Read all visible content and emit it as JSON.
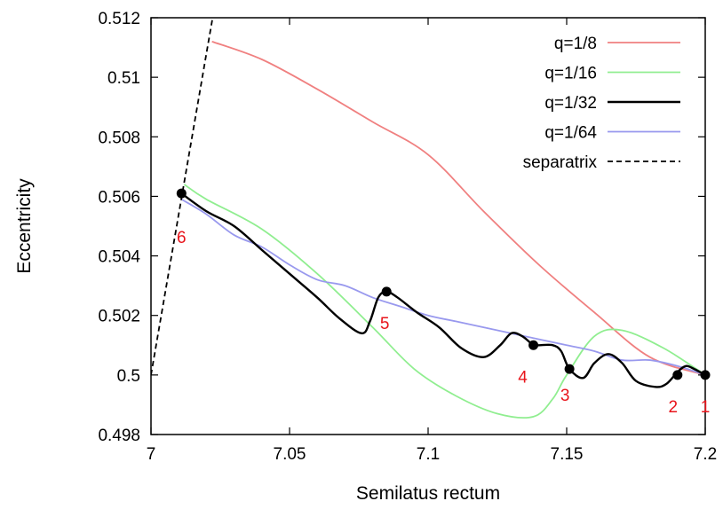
{
  "chart_data": {
    "type": "line",
    "xlabel": "Semilatus rectum",
    "ylabel": "Eccentricity",
    "xlim": [
      7.0,
      7.2
    ],
    "ylim": [
      0.498,
      0.512
    ],
    "x_ticks": [
      "7",
      "7.05",
      "7.1",
      "7.15",
      "7.2"
    ],
    "y_ticks": [
      "0.498",
      "0.5",
      "0.502",
      "0.504",
      "0.506",
      "0.508",
      "0.51",
      "0.512"
    ],
    "legend_position": "top-right",
    "grid": false,
    "series": [
      {
        "name": "q=1/8",
        "color": "#f08080",
        "style": "solid",
        "x": [
          7.2,
          7.18,
          7.16,
          7.14,
          7.12,
          7.1,
          7.08,
          7.06,
          7.04,
          7.022
        ],
        "y": [
          0.5,
          0.5006,
          0.5021,
          0.5037,
          0.5055,
          0.5074,
          0.5085,
          0.5096,
          0.5106,
          0.5112
        ]
      },
      {
        "name": "q=1/16",
        "color": "#90ee90",
        "style": "solid",
        "x": [
          7.2,
          7.185,
          7.17,
          7.16,
          7.15,
          7.145,
          7.138,
          7.125,
          7.11,
          7.095,
          7.08,
          7.06,
          7.04,
          7.02,
          7.012
        ],
        "y": [
          0.5,
          0.5009,
          0.5015,
          0.5013,
          0.5,
          0.4992,
          0.4986,
          0.4987,
          0.4993,
          0.5002,
          0.5016,
          0.5034,
          0.5049,
          0.5059,
          0.5064
        ]
      },
      {
        "name": "q=1/32",
        "color": "#000000",
        "style": "solid",
        "x": [
          7.2,
          7.196,
          7.193,
          7.19,
          7.186,
          7.182,
          7.175,
          7.17,
          7.165,
          7.16,
          7.156,
          7.151,
          7.148,
          7.145,
          7.14,
          7.138,
          7.134,
          7.13,
          7.126,
          7.12,
          7.112,
          7.104,
          7.096,
          7.089,
          7.085,
          7.082,
          7.079,
          7.076,
          7.068,
          7.06,
          7.05,
          7.04,
          7.03,
          7.02,
          7.011
        ],
        "y": [
          0.5,
          0.5002,
          0.5003,
          0.5001,
          0.4997,
          0.4996,
          0.4998,
          0.5004,
          0.5007,
          0.5004,
          0.4999,
          0.5002,
          0.5008,
          0.501,
          0.501,
          0.501,
          0.5013,
          0.5014,
          0.501,
          0.5006,
          0.5009,
          0.5016,
          0.5021,
          0.5026,
          0.5028,
          0.5026,
          0.5018,
          0.5014,
          0.5019,
          0.5026,
          0.5034,
          0.5042,
          0.505,
          0.5055,
          0.5061
        ]
      },
      {
        "name": "q=1/64",
        "color": "#9999ee",
        "style": "solid",
        "x": [
          7.2,
          7.19,
          7.18,
          7.17,
          7.16,
          7.15,
          7.14,
          7.13,
          7.12,
          7.11,
          7.1,
          7.09,
          7.08,
          7.07,
          7.06,
          7.05,
          7.04,
          7.03,
          7.02,
          7.011
        ],
        "y": [
          0.5,
          0.5003,
          0.5005,
          0.5005,
          0.5008,
          0.501,
          0.5012,
          0.5014,
          0.5016,
          0.5018,
          0.502,
          0.5023,
          0.5026,
          0.503,
          0.5032,
          0.5037,
          0.5043,
          0.5047,
          0.5054,
          0.5059
        ]
      },
      {
        "name": "separatrix",
        "color": "#000000",
        "style": "dashed",
        "x": [
          7.0,
          7.005,
          7.01,
          7.015,
          7.02,
          7.0228
        ],
        "y": [
          0.5,
          0.5027,
          0.5054,
          0.5081,
          0.5108,
          0.5123
        ]
      }
    ],
    "markers": [
      {
        "label": "1",
        "x": 7.2,
        "y": 0.5
      },
      {
        "label": "2",
        "x": 7.19,
        "y": 0.5
      },
      {
        "label": "3",
        "x": 7.151,
        "y": 0.5002
      },
      {
        "label": "4",
        "x": 7.138,
        "y": 0.501
      },
      {
        "label": "5",
        "x": 7.085,
        "y": 0.5028
      },
      {
        "label": "6",
        "x": 7.011,
        "y": 0.5061
      }
    ]
  }
}
